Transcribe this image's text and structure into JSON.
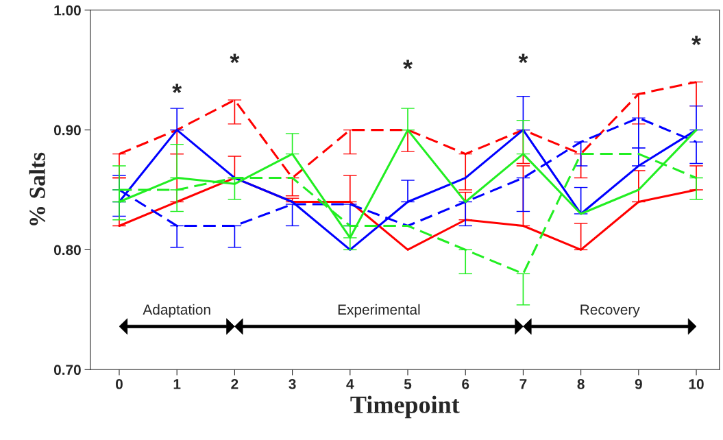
{
  "chart_data": {
    "type": "line",
    "xlabel": "Timepoint",
    "ylabel": "% Salts",
    "x": [
      0,
      1,
      2,
      3,
      4,
      5,
      6,
      7,
      8,
      9,
      10
    ],
    "xlim": [
      -0.5,
      10.4
    ],
    "xticks": [
      0,
      1,
      2,
      3,
      4,
      5,
      6,
      7,
      8,
      9,
      10
    ],
    "ylim": [
      0.7,
      1.0
    ],
    "yticks": [
      {
        "value": 0.7,
        "label": "0.70"
      },
      {
        "value": 0.8,
        "label": "0.80"
      },
      {
        "value": 0.9,
        "label": "0.90"
      },
      {
        "value": 1.0,
        "label": "1.00"
      }
    ],
    "grid": false,
    "legend": false,
    "series": [
      {
        "color": "#ff0000",
        "line_style": "solid",
        "values": [
          0.82,
          0.84,
          0.86,
          0.84,
          0.84,
          0.8,
          0.825,
          0.82,
          0.8,
          0.84,
          0.85
        ],
        "errors": [
          [
            0.82,
            0.86
          ],
          [
            0.84,
            0.88
          ],
          [
            0.86,
            0.878
          ],
          [
            0.84,
            0.843
          ],
          [
            0.84,
            0.862
          ],
          null,
          [
            0.825,
            0.848
          ],
          [
            0.82,
            0.87
          ],
          [
            0.8,
            0.822
          ],
          [
            0.84,
            0.866
          ],
          [
            0.85,
            0.87
          ]
        ]
      },
      {
        "color": "#ff0000",
        "line_style": "dashed",
        "values": [
          0.88,
          0.9,
          0.925,
          0.86,
          0.9,
          0.9,
          0.88,
          0.9,
          0.88,
          0.93,
          0.94
        ],
        "errors": [
          [
            0.86,
            0.88
          ],
          [
            0.88,
            0.9
          ],
          [
            0.905,
            0.925
          ],
          [
            0.845,
            0.86
          ],
          [
            0.88,
            0.9
          ],
          [
            0.882,
            0.9
          ],
          [
            0.85,
            0.88
          ],
          [
            0.872,
            0.9
          ],
          [
            0.86,
            0.88
          ],
          [
            0.905,
            0.93
          ],
          [
            0.92,
            0.94
          ]
        ]
      },
      {
        "color": "#0000ff",
        "line_style": "solid",
        "values": [
          0.84,
          0.9,
          0.86,
          0.84,
          0.8,
          0.84,
          0.86,
          0.9,
          0.83,
          0.87,
          0.9
        ],
        "errors": [
          [
            0.84,
            0.862
          ],
          [
            0.9,
            0.918
          ],
          null,
          null,
          null,
          [
            0.84,
            0.858
          ],
          null,
          [
            0.9,
            0.928
          ],
          [
            0.83,
            0.852
          ],
          [
            0.87,
            0.885
          ],
          [
            0.9,
            0.92
          ]
        ]
      },
      {
        "color": "#0000ff",
        "line_style": "dashed",
        "values": [
          0.85,
          0.82,
          0.82,
          0.838,
          0.838,
          0.82,
          0.84,
          0.86,
          0.89,
          0.91,
          0.89
        ],
        "errors": [
          [
            0.828,
            0.85
          ],
          [
            0.802,
            0.82
          ],
          [
            0.802,
            0.82
          ],
          [
            0.82,
            0.838
          ],
          [
            0.82,
            0.838
          ],
          null,
          [
            0.82,
            0.84
          ],
          [
            0.832,
            0.86
          ],
          [
            0.87,
            0.89
          ],
          [
            0.885,
            0.91
          ],
          [
            0.872,
            0.89
          ]
        ]
      },
      {
        "color": "#22ee22",
        "line_style": "solid",
        "values": [
          0.84,
          0.86,
          0.855,
          0.88,
          0.81,
          0.9,
          0.84,
          0.88,
          0.83,
          0.85,
          0.9
        ],
        "errors": [
          [
            0.84,
            0.87
          ],
          [
            0.86,
            0.888
          ],
          null,
          [
            0.88,
            0.897
          ],
          [
            0.81,
            0.82
          ],
          [
            0.9,
            0.918
          ],
          null,
          [
            0.88,
            0.908
          ],
          null,
          null,
          null
        ]
      },
      {
        "color": "#22ee22",
        "line_style": "dashed",
        "values": [
          0.85,
          0.85,
          0.86,
          0.86,
          0.82,
          0.82,
          0.8,
          0.78,
          0.88,
          0.88,
          0.86
        ],
        "errors": [
          [
            0.825,
            0.85
          ],
          [
            0.832,
            0.85
          ],
          [
            0.842,
            0.86
          ],
          null,
          [
            0.8,
            0.82
          ],
          null,
          [
            0.78,
            0.8
          ],
          [
            0.754,
            0.78
          ],
          null,
          null,
          [
            0.842,
            0.86
          ]
        ]
      }
    ],
    "annotations": [
      "*",
      "*",
      "*",
      "*",
      "*",
      "Adaptation",
      "Experimental",
      "Recovery"
    ]
  }
}
